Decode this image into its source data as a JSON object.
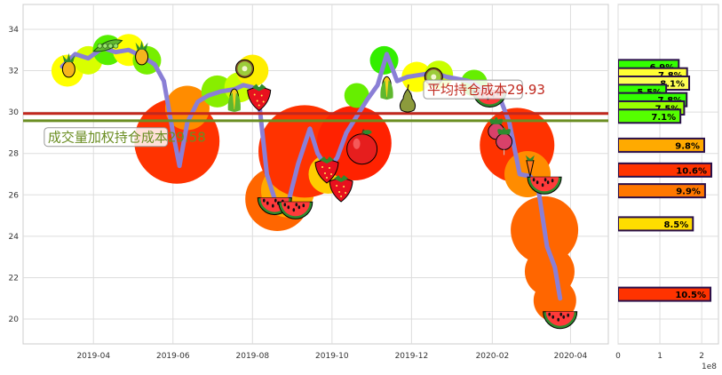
{
  "chart_data": [
    {
      "type": "line",
      "title": "",
      "xlabel": "",
      "ylabel": "",
      "x_ticks": [
        "2019-04",
        "2019-06",
        "2019-08",
        "2019-10",
        "2019-12",
        "2020-02",
        "2020-04"
      ],
      "y_ticks": [
        "20",
        "22",
        "24",
        "26",
        "28",
        "30",
        "32",
        "34"
      ],
      "ylim": [
        18.8,
        35.2
      ],
      "xlim": [
        "2019-02-06",
        "2020-04-30"
      ],
      "grid": true,
      "series": [
        {
          "type": "line",
          "color": "#8a7fd6",
          "x": [
            "2019-03-08",
            "2019-03-18",
            "2019-03-28",
            "2019-04-08",
            "2019-04-18",
            "2019-04-28",
            "2019-05-08",
            "2019-05-18",
            "2019-05-25",
            "2019-06-01",
            "2019-06-06",
            "2019-06-12",
            "2019-06-20",
            "2019-06-28",
            "2019-07-08",
            "2019-07-18",
            "2019-07-25",
            "2019-08-01",
            "2019-08-06",
            "2019-08-12",
            "2019-08-20",
            "2019-08-28",
            "2019-09-05",
            "2019-09-14",
            "2019-09-20",
            "2019-09-28",
            "2019-10-05",
            "2019-10-12",
            "2019-10-22",
            "2019-10-28",
            "2019-11-05",
            "2019-11-12",
            "2019-11-20",
            "2019-11-28",
            "2019-12-08",
            "2019-12-18",
            "2019-12-28",
            "2020-01-06",
            "2020-01-14",
            "2020-01-22",
            "2020-01-30",
            "2020-02-08",
            "2020-02-14",
            "2020-02-22",
            "2020-03-01",
            "2020-03-07",
            "2020-03-14",
            "2020-03-20",
            "2020-03-24"
          ],
          "y": [
            32.2,
            32.8,
            32.6,
            33.1,
            32.9,
            33.0,
            32.7,
            32.3,
            31.5,
            29.0,
            27.4,
            29.5,
            30.5,
            30.8,
            31.0,
            31.1,
            31.3,
            31.2,
            30.5,
            27.0,
            25.4,
            25.5,
            27.5,
            29.2,
            28.0,
            27.2,
            27.8,
            29.0,
            30.0,
            30.6,
            31.3,
            32.8,
            31.5,
            31.7,
            31.8,
            31.9,
            31.7,
            31.6,
            31.5,
            31.2,
            31.0,
            30.5,
            29.5,
            27.0,
            26.9,
            26.4,
            23.5,
            22.5,
            21.0
          ]
        }
      ],
      "hlines": [
        {
          "value": 29.93,
          "color": "#c0281e"
        },
        {
          "value": 29.58,
          "color": "#6b8e23"
        }
      ],
      "annotations": [
        {
          "text": "平均持仓成本29.93",
          "color": "#c0281e",
          "x": "2019-12-13",
          "y": 30.9
        },
        {
          "text": "成交量加权持仓成本29.58",
          "color": "#6b8e23",
          "x": "2019-02-25",
          "y": 28.6
        }
      ],
      "bubbles": [
        {
          "x": "2019-03-12",
          "y": 32.0,
          "size": 18,
          "color": "#ffff00"
        },
        {
          "x": "2019-03-28",
          "y": 32.5,
          "size": 16,
          "color": "#d9ff00"
        },
        {
          "x": "2019-04-12",
          "y": 33.0,
          "size": 17,
          "color": "#55ee00"
        },
        {
          "x": "2019-04-28",
          "y": 33.0,
          "size": 18,
          "color": "#ffff00"
        },
        {
          "x": "2019-05-12",
          "y": 32.5,
          "size": 16,
          "color": "#77ee00"
        },
        {
          "x": "2019-06-04",
          "y": 28.6,
          "size": 48,
          "color": "#ff3300"
        },
        {
          "x": "2019-06-12",
          "y": 30.2,
          "size": 25,
          "color": "#ff8c00"
        },
        {
          "x": "2019-07-05",
          "y": 31.0,
          "size": 18,
          "color": "#88ee00"
        },
        {
          "x": "2019-07-22",
          "y": 31.2,
          "size": 17,
          "color": "#c8ff00"
        },
        {
          "x": "2019-08-01",
          "y": 32.0,
          "size": 18,
          "color": "#ffee00"
        },
        {
          "x": "2019-08-20",
          "y": 25.8,
          "size": 36,
          "color": "#ff6600"
        },
        {
          "x": "2019-08-28",
          "y": 26.2,
          "size": 30,
          "color": "#ffaa00"
        },
        {
          "x": "2019-09-10",
          "y": 28.1,
          "size": 52,
          "color": "#ff3300"
        },
        {
          "x": "2019-09-28",
          "y": 27.0,
          "size": 22,
          "color": "#ffcc00"
        },
        {
          "x": "2019-10-18",
          "y": 28.5,
          "size": 42,
          "color": "#ff2200"
        },
        {
          "x": "2019-10-20",
          "y": 30.8,
          "size": 14,
          "color": "#66ee00"
        },
        {
          "x": "2019-11-10",
          "y": 32.5,
          "size": 16,
          "color": "#33ee00"
        },
        {
          "x": "2019-12-05",
          "y": 31.7,
          "size": 17,
          "color": "#ffff00"
        },
        {
          "x": "2019-12-22",
          "y": 31.8,
          "size": 16,
          "color": "#c8ff00"
        },
        {
          "x": "2020-01-18",
          "y": 31.4,
          "size": 15,
          "color": "#66ee00"
        },
        {
          "x": "2020-02-20",
          "y": 28.4,
          "size": 42,
          "color": "#ff3300"
        },
        {
          "x": "2020-02-28",
          "y": 27.0,
          "size": 26,
          "color": "#ff8c00"
        },
        {
          "x": "2020-03-12",
          "y": 24.3,
          "size": 38,
          "color": "#ff6600"
        },
        {
          "x": "2020-03-16",
          "y": 22.3,
          "size": 28,
          "color": "#ff6600"
        },
        {
          "x": "2020-03-20",
          "y": 20.9,
          "size": 24,
          "color": "#ff6600"
        }
      ],
      "icons": [
        {
          "name": "pineapple-icon",
          "x": "2019-03-13",
          "y": 32.2
        },
        {
          "name": "peas-icon",
          "x": "2019-04-12",
          "y": 33.2
        },
        {
          "name": "pineapple-icon",
          "x": "2019-05-08",
          "y": 32.8
        },
        {
          "name": "kiwi-icon",
          "x": "2019-07-26",
          "y": 32.1
        },
        {
          "name": "corn-icon",
          "x": "2019-07-18",
          "y": 30.6
        },
        {
          "name": "strawberry-icon",
          "x": "2019-08-06",
          "y": 30.8
        },
        {
          "name": "watermelon-icon",
          "x": "2019-08-18",
          "y": 25.6
        },
        {
          "name": "watermelon-icon",
          "x": "2019-09-03",
          "y": 25.4
        },
        {
          "name": "strawberry-icon",
          "x": "2019-09-27",
          "y": 27.3
        },
        {
          "name": "apple-icon",
          "x": "2019-10-24",
          "y": 28.3
        },
        {
          "name": "strawberry-icon",
          "x": "2019-10-08",
          "y": 26.4
        },
        {
          "name": "corn-icon",
          "x": "2019-11-12",
          "y": 31.2
        },
        {
          "name": "pear-icon",
          "x": "2019-11-28",
          "y": 30.6
        },
        {
          "name": "kiwi-icon",
          "x": "2019-12-18",
          "y": 31.7
        },
        {
          "name": "watermelon-icon",
          "x": "2020-01-30",
          "y": 30.8
        },
        {
          "name": "radish-icon",
          "x": "2020-02-04",
          "y": 29.2
        },
        {
          "name": "radish-icon",
          "x": "2020-02-10",
          "y": 28.7
        },
        {
          "name": "carrot-icon",
          "x": "2020-03-01",
          "y": 27.4
        },
        {
          "name": "watermelon-icon",
          "x": "2020-03-12",
          "y": 26.6
        },
        {
          "name": "watermelon-icon",
          "x": "2020-03-24",
          "y": 20.1
        }
      ]
    },
    {
      "type": "bar",
      "orientation": "horizontal",
      "title": "",
      "xlabel": "",
      "x_ticks": [
        "0",
        "1",
        "2"
      ],
      "x_offset_label": "1e8",
      "xlim": [
        0,
        2.4
      ],
      "ylim": [
        18.8,
        35.2
      ],
      "grid": true,
      "bars": [
        {
          "y": 32.2,
          "value": 1.45,
          "label": "6.9%",
          "color": "#33ff00"
        },
        {
          "y": 31.8,
          "value": 1.65,
          "label": "7.8%",
          "color": "#ffff33"
        },
        {
          "y": 31.4,
          "value": 1.7,
          "label": "8.1%",
          "color": "#ffff55"
        },
        {
          "y": 31.0,
          "value": 1.15,
          "label": "5.5%",
          "color": "#33ff00"
        },
        {
          "y": 30.6,
          "value": 1.64,
          "label": "7.8%",
          "color": "#33ff00"
        },
        {
          "y": 30.2,
          "value": 1.58,
          "label": "7.5%",
          "color": "#99ff00"
        },
        {
          "y": 29.8,
          "value": 1.49,
          "label": "7.1%",
          "color": "#55ff00"
        },
        {
          "y": 28.4,
          "value": 2.06,
          "label": "9.8%",
          "color": "#ffaa00"
        },
        {
          "y": 27.2,
          "value": 2.23,
          "label": "10.6%",
          "color": "#ff3300"
        },
        {
          "y": 26.2,
          "value": 2.08,
          "label": "9.9%",
          "color": "#ff7700"
        },
        {
          "y": 24.6,
          "value": 1.79,
          "label": "8.5%",
          "color": "#ffdd00"
        },
        {
          "y": 21.2,
          "value": 2.21,
          "label": "10.5%",
          "color": "#ff3300"
        }
      ]
    }
  ]
}
